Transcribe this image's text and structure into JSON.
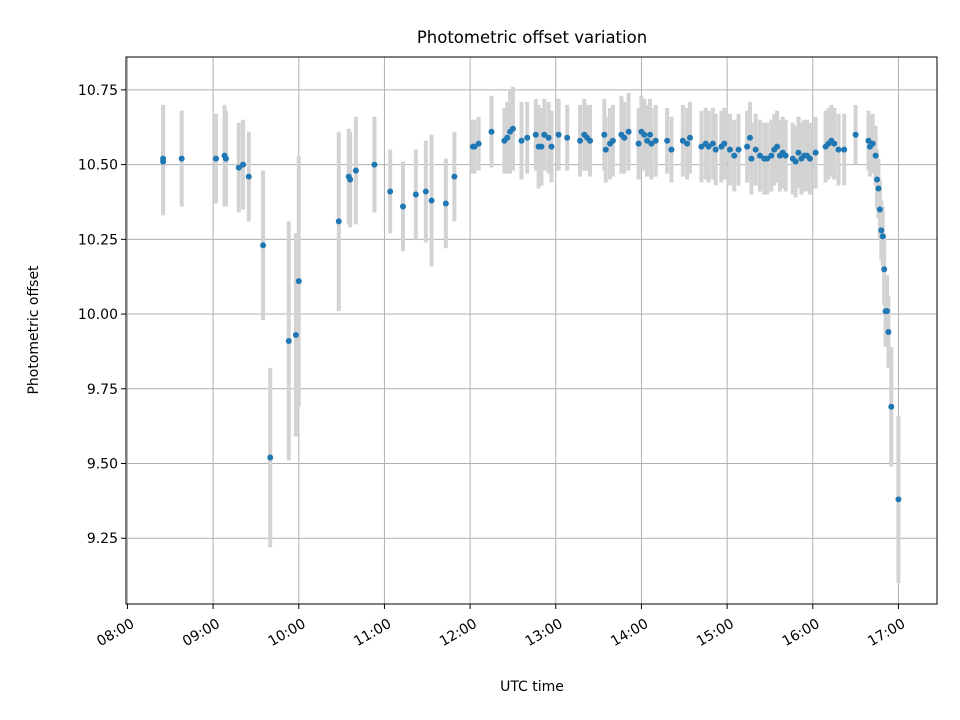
{
  "chart_data": {
    "type": "scatter",
    "title": "Photometric offset variation",
    "xlabel": "UTC time",
    "ylabel": "Photometric offset",
    "xlim": [
      "07:59",
      "17:27"
    ],
    "ylim": [
      9.03,
      10.86
    ],
    "x_ticks": [
      "08:00",
      "09:00",
      "10:00",
      "11:00",
      "12:00",
      "13:00",
      "14:00",
      "15:00",
      "16:00",
      "17:00"
    ],
    "y_ticks": [
      "9.25",
      "9.50",
      "9.75",
      "10.00",
      "10.25",
      "10.50",
      "10.75"
    ],
    "grid": true,
    "colors": {
      "point": "#1f77b4",
      "errorbar": "#d3d3d3",
      "grid": "#b0b0b0"
    },
    "series": [
      {
        "points": [
          {
            "x": "08:25",
            "y": 10.51,
            "err": 0.18
          },
          {
            "x": "08:25",
            "y": 10.52,
            "err": 0.18
          },
          {
            "x": "08:38",
            "y": 10.52,
            "err": 0.16
          },
          {
            "x": "09:02",
            "y": 10.52,
            "err": 0.15
          },
          {
            "x": "09:08",
            "y": 10.53,
            "err": 0.17
          },
          {
            "x": "09:09",
            "y": 10.52,
            "err": 0.16
          },
          {
            "x": "09:18",
            "y": 10.49,
            "err": 0.15
          },
          {
            "x": "09:21",
            "y": 10.5,
            "err": 0.15
          },
          {
            "x": "09:25",
            "y": 10.46,
            "err": 0.15
          },
          {
            "x": "09:35",
            "y": 10.23,
            "err": 0.25
          },
          {
            "x": "09:40",
            "y": 9.52,
            "err": 0.3
          },
          {
            "x": "09:53",
            "y": 9.91,
            "err": 0.4
          },
          {
            "x": "09:58",
            "y": 9.93,
            "err": 0.34
          },
          {
            "x": "10:00",
            "y": 10.11,
            "err": 0.42
          },
          {
            "x": "10:28",
            "y": 10.31,
            "err": 0.3
          },
          {
            "x": "10:35",
            "y": 10.46,
            "err": 0.16
          },
          {
            "x": "10:36",
            "y": 10.45,
            "err": 0.16
          },
          {
            "x": "10:40",
            "y": 10.48,
            "err": 0.18
          },
          {
            "x": "10:53",
            "y": 10.5,
            "err": 0.16
          },
          {
            "x": "11:04",
            "y": 10.41,
            "err": 0.14
          },
          {
            "x": "11:13",
            "y": 10.36,
            "err": 0.15
          },
          {
            "x": "11:22",
            "y": 10.4,
            "err": 0.15
          },
          {
            "x": "11:29",
            "y": 10.41,
            "err": 0.17
          },
          {
            "x": "11:33",
            "y": 10.38,
            "err": 0.22
          },
          {
            "x": "11:43",
            "y": 10.37,
            "err": 0.15
          },
          {
            "x": "11:49",
            "y": 10.46,
            "err": 0.15
          },
          {
            "x": "12:02",
            "y": 10.56,
            "err": 0.09
          },
          {
            "x": "12:03",
            "y": 10.56,
            "err": 0.09
          },
          {
            "x": "12:06",
            "y": 10.57,
            "err": 0.09
          },
          {
            "x": "12:15",
            "y": 10.61,
            "err": 0.12
          },
          {
            "x": "12:24",
            "y": 10.58,
            "err": 0.11
          },
          {
            "x": "12:26",
            "y": 10.59,
            "err": 0.12
          },
          {
            "x": "12:28",
            "y": 10.61,
            "err": 0.14
          },
          {
            "x": "12:30",
            "y": 10.62,
            "err": 0.14
          },
          {
            "x": "12:36",
            "y": 10.58,
            "err": 0.13
          },
          {
            "x": "12:40",
            "y": 10.59,
            "err": 0.12
          },
          {
            "x": "12:46",
            "y": 10.6,
            "err": 0.12
          },
          {
            "x": "12:48",
            "y": 10.56,
            "err": 0.14
          },
          {
            "x": "12:50",
            "y": 10.56,
            "err": 0.13
          },
          {
            "x": "12:52",
            "y": 10.6,
            "err": 0.12
          },
          {
            "x": "12:55",
            "y": 10.59,
            "err": 0.12
          },
          {
            "x": "12:57",
            "y": 10.56,
            "err": 0.12
          },
          {
            "x": "13:02",
            "y": 10.6,
            "err": 0.12
          },
          {
            "x": "13:08",
            "y": 10.59,
            "err": 0.11
          },
          {
            "x": "13:17",
            "y": 10.58,
            "err": 0.12
          },
          {
            "x": "13:20",
            "y": 10.6,
            "err": 0.12
          },
          {
            "x": "13:22",
            "y": 10.59,
            "err": 0.11
          },
          {
            "x": "13:24",
            "y": 10.58,
            "err": 0.12
          },
          {
            "x": "13:34",
            "y": 10.6,
            "err": 0.12
          },
          {
            "x": "13:35",
            "y": 10.55,
            "err": 0.11
          },
          {
            "x": "13:38",
            "y": 10.57,
            "err": 0.12
          },
          {
            "x": "13:40",
            "y": 10.58,
            "err": 0.12
          },
          {
            "x": "13:46",
            "y": 10.6,
            "err": 0.13
          },
          {
            "x": "13:48",
            "y": 10.59,
            "err": 0.12
          },
          {
            "x": "13:51",
            "y": 10.61,
            "err": 0.13
          },
          {
            "x": "13:58",
            "y": 10.57,
            "err": 0.12
          },
          {
            "x": "14:00",
            "y": 10.61,
            "err": 0.12
          },
          {
            "x": "14:02",
            "y": 10.6,
            "err": 0.12
          },
          {
            "x": "14:04",
            "y": 10.58,
            "err": 0.12
          },
          {
            "x": "14:06",
            "y": 10.6,
            "err": 0.12
          },
          {
            "x": "14:07",
            "y": 10.57,
            "err": 0.12
          },
          {
            "x": "14:10",
            "y": 10.58,
            "err": 0.12
          },
          {
            "x": "14:18",
            "y": 10.58,
            "err": 0.11
          },
          {
            "x": "14:21",
            "y": 10.55,
            "err": 0.11
          },
          {
            "x": "14:29",
            "y": 10.58,
            "err": 0.12
          },
          {
            "x": "14:32",
            "y": 10.57,
            "err": 0.12
          },
          {
            "x": "14:34",
            "y": 10.59,
            "err": 0.12
          },
          {
            "x": "14:42",
            "y": 10.56,
            "err": 0.12
          },
          {
            "x": "14:45",
            "y": 10.57,
            "err": 0.12
          },
          {
            "x": "14:47",
            "y": 10.56,
            "err": 0.12
          },
          {
            "x": "14:50",
            "y": 10.57,
            "err": 0.12
          },
          {
            "x": "14:52",
            "y": 10.55,
            "err": 0.12
          },
          {
            "x": "14:56",
            "y": 10.56,
            "err": 0.12
          },
          {
            "x": "14:58",
            "y": 10.57,
            "err": 0.12
          },
          {
            "x": "15:02",
            "y": 10.55,
            "err": 0.12
          },
          {
            "x": "15:05",
            "y": 10.53,
            "err": 0.12
          },
          {
            "x": "15:08",
            "y": 10.55,
            "err": 0.12
          },
          {
            "x": "15:14",
            "y": 10.56,
            "err": 0.12
          },
          {
            "x": "15:16",
            "y": 10.59,
            "err": 0.12
          },
          {
            "x": "15:17",
            "y": 10.52,
            "err": 0.12
          },
          {
            "x": "15:20",
            "y": 10.55,
            "err": 0.12
          },
          {
            "x": "15:23",
            "y": 10.53,
            "err": 0.12
          },
          {
            "x": "15:26",
            "y": 10.52,
            "err": 0.12
          },
          {
            "x": "15:28",
            "y": 10.52,
            "err": 0.12
          },
          {
            "x": "15:31",
            "y": 10.53,
            "err": 0.12
          },
          {
            "x": "15:33",
            "y": 10.55,
            "err": 0.12
          },
          {
            "x": "15:35",
            "y": 10.56,
            "err": 0.12
          },
          {
            "x": "15:37",
            "y": 10.53,
            "err": 0.12
          },
          {
            "x": "15:39",
            "y": 10.54,
            "err": 0.12
          },
          {
            "x": "15:41",
            "y": 10.53,
            "err": 0.12
          },
          {
            "x": "15:46",
            "y": 10.52,
            "err": 0.12
          },
          {
            "x": "15:48",
            "y": 10.51,
            "err": 0.12
          },
          {
            "x": "15:50",
            "y": 10.54,
            "err": 0.12
          },
          {
            "x": "15:52",
            "y": 10.52,
            "err": 0.12
          },
          {
            "x": "15:54",
            "y": 10.53,
            "err": 0.12
          },
          {
            "x": "15:56",
            "y": 10.53,
            "err": 0.12
          },
          {
            "x": "15:58",
            "y": 10.52,
            "err": 0.12
          },
          {
            "x": "16:02",
            "y": 10.54,
            "err": 0.12
          },
          {
            "x": "16:09",
            "y": 10.56,
            "err": 0.12
          },
          {
            "x": "16:11",
            "y": 10.57,
            "err": 0.12
          },
          {
            "x": "16:13",
            "y": 10.58,
            "err": 0.12
          },
          {
            "x": "16:15",
            "y": 10.57,
            "err": 0.12
          },
          {
            "x": "16:18",
            "y": 10.55,
            "err": 0.12
          },
          {
            "x": "16:22",
            "y": 10.55,
            "err": 0.12
          },
          {
            "x": "16:30",
            "y": 10.6,
            "err": 0.1
          },
          {
            "x": "16:39",
            "y": 10.58,
            "err": 0.1
          },
          {
            "x": "16:40",
            "y": 10.56,
            "err": 0.1
          },
          {
            "x": "16:42",
            "y": 10.57,
            "err": 0.1
          },
          {
            "x": "16:44",
            "y": 10.53,
            "err": 0.1
          },
          {
            "x": "16:45",
            "y": 10.45,
            "err": 0.1
          },
          {
            "x": "16:46",
            "y": 10.42,
            "err": 0.1
          },
          {
            "x": "16:47",
            "y": 10.35,
            "err": 0.1
          },
          {
            "x": "16:48",
            "y": 10.28,
            "err": 0.1
          },
          {
            "x": "16:49",
            "y": 10.26,
            "err": 0.1
          },
          {
            "x": "16:50",
            "y": 10.15,
            "err": 0.12
          },
          {
            "x": "16:51",
            "y": 10.01,
            "err": 0.12
          },
          {
            "x": "16:52",
            "y": 10.01,
            "err": 0.12
          },
          {
            "x": "16:53",
            "y": 9.94,
            "err": 0.12
          },
          {
            "x": "16:55",
            "y": 9.69,
            "err": 0.2
          },
          {
            "x": "17:00",
            "y": 9.38,
            "err": 0.28
          }
        ]
      }
    ]
  }
}
